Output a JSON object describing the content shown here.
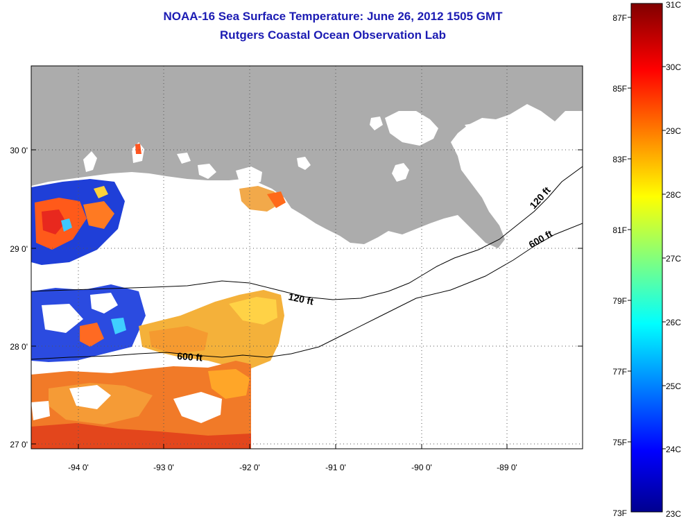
{
  "title": "NOAA-16 Sea Surface Temperature:  June 26, 2012 1505 GMT",
  "subtitle": "Rutgers Coastal Ocean Observation Lab",
  "map": {
    "lon_ticks": [
      "-94 0'",
      "-93 0'",
      "-92 0'",
      "-91 0'",
      "-90 0'",
      "-89 0'"
    ],
    "lat_ticks": [
      "30 0'",
      "29 0'",
      "28 0'",
      "27 0'"
    ],
    "contours": [
      {
        "label": "120 ft"
      },
      {
        "label": "600 ft"
      },
      {
        "label": "120 ft"
      },
      {
        "label": "600 ft"
      }
    ],
    "colors": {
      "land": "#acacac",
      "water_no_data": "#ffffff",
      "grid": "#555555"
    }
  },
  "colorbar": {
    "fahrenheit_labels": [
      "87F",
      "85F",
      "83F",
      "81F",
      "79F",
      "77F",
      "75F",
      "73F"
    ],
    "celsius_labels": [
      "31C",
      "30C",
      "29C",
      "28C",
      "27C",
      "26C",
      "25C",
      "24C",
      "23C"
    ],
    "range_c": [
      23,
      31
    ]
  }
}
